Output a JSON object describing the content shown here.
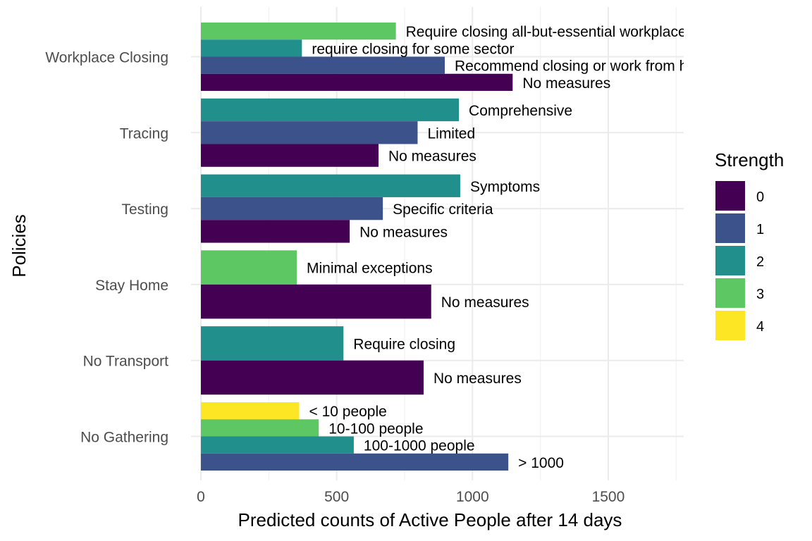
{
  "chart_data": {
    "type": "bar",
    "orientation": "horizontal",
    "xlabel": "Predicted counts of Active People after 14 days",
    "ylabel": "Policies",
    "xlim": [
      -30,
      1780
    ],
    "x_ticks": [
      0,
      500,
      1000,
      1500
    ],
    "grid": true,
    "legend": {
      "title": "Strength",
      "placement": "right",
      "items": [
        {
          "label": "0",
          "color": "#440154"
        },
        {
          "label": "1",
          "color": "#3B528B"
        },
        {
          "label": "2",
          "color": "#21908C"
        },
        {
          "label": "3",
          "color": "#5DC863"
        },
        {
          "label": "4",
          "color": "#FDE725"
        }
      ]
    },
    "categories": [
      "Workplace Closing",
      "Tracing",
      "Testing",
      "Stay Home",
      "No Transport",
      "No Gathering"
    ],
    "groups": [
      {
        "category": "Workplace Closing",
        "bars": [
          {
            "strength": 3,
            "value": 718,
            "label": "Require closing all-but-essential workplaces"
          },
          {
            "strength": 2,
            "value": 372,
            "label": "require closing for some sector"
          },
          {
            "strength": 1,
            "value": 898,
            "label": "Recommend closing or work from home"
          },
          {
            "strength": 0,
            "value": 1148,
            "label": "No measures"
          }
        ]
      },
      {
        "category": "Tracing",
        "bars": [
          {
            "strength": 2,
            "value": 950,
            "label": "Comprehensive"
          },
          {
            "strength": 1,
            "value": 798,
            "label": "Limited"
          },
          {
            "strength": 0,
            "value": 654,
            "label": "No measures"
          }
        ]
      },
      {
        "category": "Testing",
        "bars": [
          {
            "strength": 2,
            "value": 955,
            "label": "Symptoms"
          },
          {
            "strength": 1,
            "value": 670,
            "label": "Specific criteria"
          },
          {
            "strength": 0,
            "value": 548,
            "label": "No measures"
          }
        ]
      },
      {
        "category": "Stay Home",
        "bars": [
          {
            "strength": 3,
            "value": 353,
            "label": "Minimal exceptions"
          },
          {
            "strength": 0,
            "value": 848,
            "label": "No measures"
          }
        ]
      },
      {
        "category": "No Transport",
        "bars": [
          {
            "strength": 2,
            "value": 525,
            "label": "Require closing"
          },
          {
            "strength": 0,
            "value": 820,
            "label": "No measures"
          }
        ]
      },
      {
        "category": "No Gathering",
        "bars": [
          {
            "strength": 4,
            "value": 362,
            "label": "< 10 people"
          },
          {
            "strength": 3,
            "value": 434,
            "label": "10-100 people"
          },
          {
            "strength": 2,
            "value": 563,
            "label": "100-1000 people"
          },
          {
            "strength": 1,
            "value": 1132,
            "label": "> 1000"
          }
        ]
      }
    ]
  }
}
